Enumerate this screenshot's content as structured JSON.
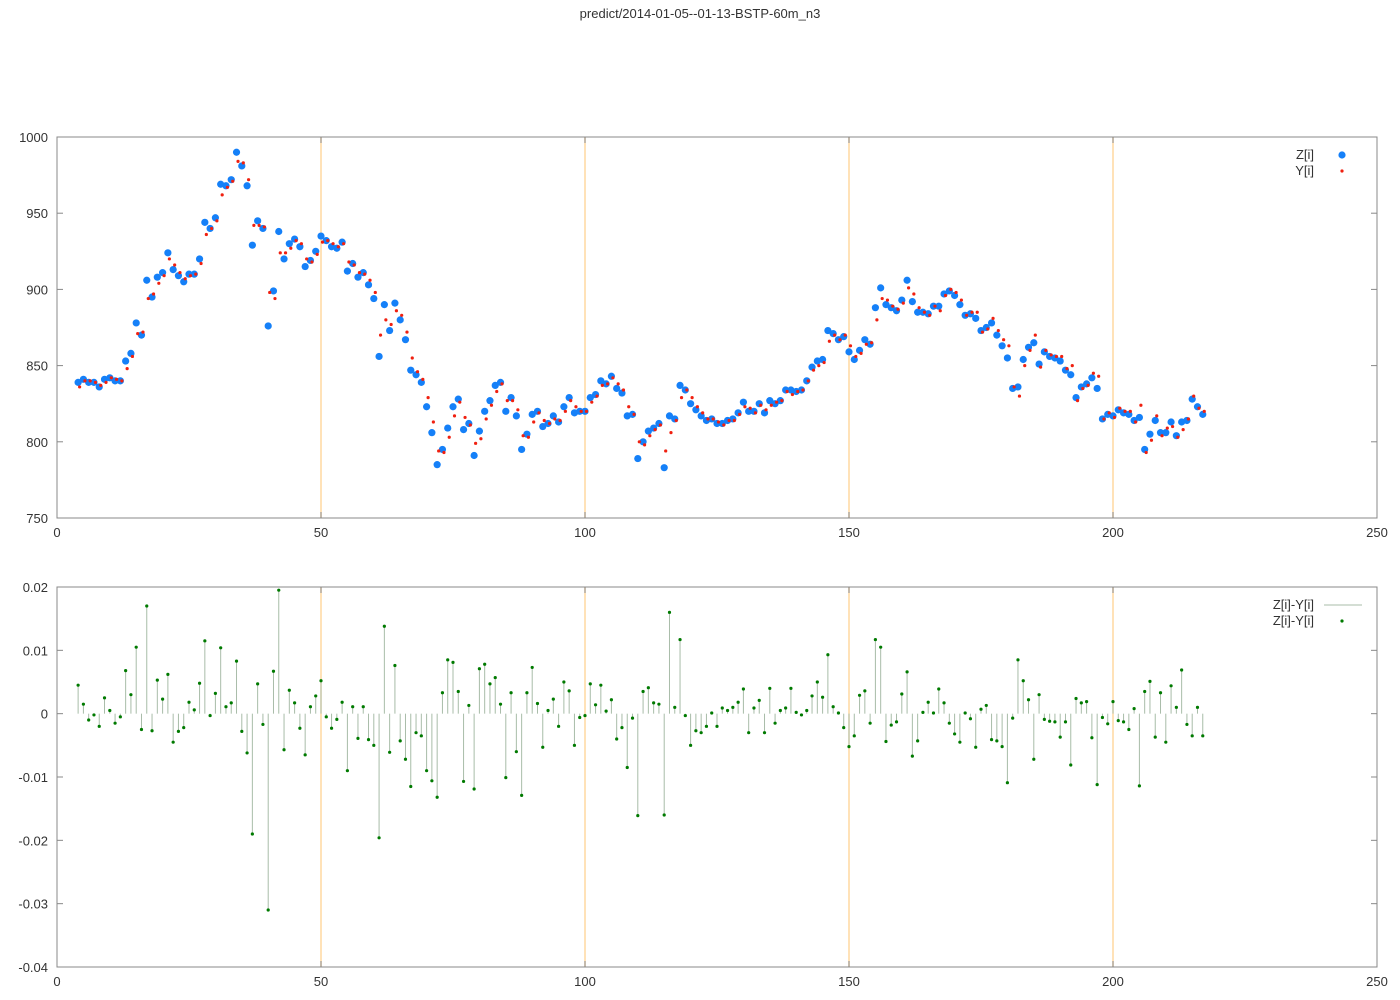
{
  "title": "predict/2014-01-05--01-13-BSTP-60m_n3",
  "colors": {
    "z": "#1580f8",
    "y": "#f02010",
    "diff_line": "#a8bca8",
    "diff_point": "#007a00",
    "grid": "#ffd8a0",
    "axis": "#888888"
  },
  "chart_data": [
    {
      "type": "scatter",
      "title": "",
      "xlabel": "",
      "ylabel": "",
      "xlim": [
        0,
        250
      ],
      "ylim": [
        750,
        1000
      ],
      "xticks": [
        "0",
        "50",
        "100",
        "150",
        "200",
        "250"
      ],
      "yticks": [
        "750",
        "800",
        "850",
        "900",
        "950",
        "1000"
      ],
      "grid": "vertical lines at x ticks 50-200",
      "legend": "top-right",
      "x_range": [
        4,
        217
      ],
      "series": [
        {
          "name": "Z[i]",
          "marker": "large dot",
          "values": [
            839,
            841,
            839,
            839,
            836,
            841,
            842,
            840,
            840,
            853,
            858,
            878,
            870,
            906,
            895,
            908,
            911,
            924,
            913,
            909,
            905,
            910,
            910,
            920,
            944,
            940,
            947,
            969,
            968,
            972,
            990,
            981,
            968,
            929,
            945,
            940,
            876,
            899,
            938,
            920,
            930,
            933,
            928,
            915,
            919,
            925,
            935,
            932,
            928,
            927,
            931,
            912,
            917,
            908,
            911,
            903,
            894,
            856,
            890,
            873,
            891,
            880,
            867,
            847,
            844,
            839,
            823,
            806,
            785,
            795,
            809,
            823,
            828,
            808,
            812,
            791,
            807,
            820,
            827,
            837,
            839,
            820,
            829,
            817,
            795,
            805,
            818,
            820,
            810,
            812,
            817,
            813,
            823,
            829,
            819,
            820,
            820,
            829,
            831,
            840,
            838,
            843,
            835,
            832,
            817,
            818,
            789,
            800,
            807,
            809,
            812,
            783,
            817,
            815,
            837,
            834,
            825,
            821,
            817,
            814,
            815,
            812,
            812,
            814,
            815,
            819,
            826,
            820,
            820,
            825,
            819,
            827,
            825,
            827,
            834,
            834,
            833,
            834,
            840,
            849,
            853,
            854,
            873,
            871,
            867,
            869,
            859,
            854,
            860,
            867,
            864,
            888,
            901,
            890,
            888,
            886,
            893,
            906,
            892,
            885,
            885,
            884,
            889,
            889,
            897,
            899,
            896,
            890,
            883,
            884,
            881,
            873,
            875,
            878,
            870,
            863,
            855,
            835,
            836,
            854,
            862,
            865,
            851,
            859,
            856,
            855,
            853,
            847,
            844,
            829,
            836,
            838,
            842,
            835,
            815,
            818,
            817,
            821,
            819,
            818,
            814,
            816,
            795,
            805,
            814,
            806,
            806,
            813,
            804,
            813,
            814,
            828,
            823,
            818
          ]
        },
        {
          "name": "Y[i]",
          "marker": "small dot",
          "values": [
            836,
            840,
            840,
            839,
            837,
            839,
            842,
            841,
            840,
            848,
            856,
            871,
            872,
            894,
            897,
            904,
            909,
            920,
            916,
            911,
            907,
            909,
            910,
            917,
            936,
            940,
            945,
            962,
            967,
            971,
            984,
            983,
            972,
            942,
            942,
            941,
            898,
            894,
            924,
            924,
            927,
            932,
            930,
            920,
            918,
            923,
            931,
            932,
            930,
            928,
            930,
            918,
            916,
            911,
            910,
            906,
            898,
            870,
            880,
            877,
            886,
            883,
            872,
            855,
            846,
            841,
            829,
            813,
            794,
            793,
            803,
            817,
            826,
            816,
            811,
            799,
            802,
            815,
            824,
            833,
            838,
            827,
            827,
            821,
            804,
            803,
            813,
            819,
            814,
            812,
            815,
            814,
            820,
            827,
            823,
            820,
            820,
            826,
            830,
            837,
            838,
            842,
            838,
            834,
            823,
            818,
            800,
            798,
            804,
            808,
            811,
            794,
            806,
            814,
            829,
            834,
            829,
            823,
            819,
            815,
            815,
            813,
            811,
            814,
            814,
            818,
            823,
            822,
            819,
            824,
            821,
            824,
            826,
            827,
            833,
            831,
            833,
            834,
            840,
            847,
            850,
            852,
            866,
            870,
            867,
            870,
            863,
            856,
            858,
            864,
            865,
            880,
            894,
            893,
            889,
            887,
            891,
            901,
            897,
            888,
            885,
            883,
            889,
            886,
            896,
            900,
            898,
            893,
            883,
            885,
            885,
            872,
            874,
            881,
            873,
            867,
            863,
            836,
            830,
            850,
            860,
            870,
            849,
            860,
            857,
            856,
            856,
            848,
            850,
            827,
            835,
            837,
            845,
            843,
            815,
            819,
            816,
            822,
            820,
            820,
            813,
            824,
            793,
            801,
            817,
            804,
            809,
            810,
            803,
            808,
            815,
            830,
            822,
            820
          ]
        }
      ]
    },
    {
      "type": "impulse+scatter",
      "title": "",
      "xlabel": "",
      "ylabel": "",
      "xlim": [
        0,
        250
      ],
      "ylim": [
        -0.04,
        0.02
      ],
      "xticks": [
        "0",
        "50",
        "100",
        "150",
        "200",
        "250"
      ],
      "yticks": [
        "-0.04",
        "-0.03",
        "-0.02",
        "-0.01",
        "0",
        "0.01",
        "0.02"
      ],
      "grid": "vertical lines at x ticks 50-200",
      "legend": "top-right",
      "x_range": [
        4,
        217
      ],
      "series": [
        {
          "name": "Z[i]-Y[i]",
          "marker": "impulse line",
          "values_ref": "same as points"
        },
        {
          "name": "Z[i]-Y[i]",
          "marker": "small dot",
          "values": [
            0.0045,
            0.0015,
            -0.001,
            -0.0002,
            -0.002,
            0.0025,
            0.0005,
            -0.0015,
            -0.0005,
            0.0068,
            0.003,
            0.0105,
            -0.0025,
            0.017,
            -0.0027,
            0.0053,
            0.0023,
            0.0062,
            -0.0045,
            -0.0028,
            -0.0022,
            0.0018,
            0.0006,
            0.0048,
            0.0115,
            -0.0003,
            0.0032,
            0.0104,
            0.0011,
            0.0017,
            0.0083,
            -0.0028,
            -0.0062,
            -0.019,
            0.0047,
            -0.0017,
            -0.031,
            0.0067,
            0.0195,
            -0.0057,
            0.0037,
            0.0017,
            -0.0023,
            -0.0065,
            0.0011,
            0.0028,
            0.0052,
            -0.0005,
            -0.0023,
            -0.0009,
            0.0018,
            -0.009,
            0.0011,
            -0.0039,
            0.0011,
            -0.0041,
            -0.005,
            -0.0196,
            0.0138,
            -0.0061,
            0.0076,
            -0.0043,
            -0.0072,
            -0.0115,
            -0.003,
            -0.0035,
            -0.009,
            -0.0106,
            -0.0132,
            0.0033,
            0.0085,
            0.0081,
            0.0035,
            -0.0107,
            0.0013,
            -0.0119,
            0.0071,
            0.0078,
            0.0047,
            0.0057,
            0.0015,
            -0.0101,
            0.0033,
            -0.006,
            -0.0129,
            0.0033,
            0.0073,
            0.0016,
            -0.0053,
            0.0005,
            0.0023,
            -0.002,
            0.005,
            0.0036,
            -0.005,
            -0.0006,
            -0.0003,
            0.0047,
            0.0014,
            0.0045,
            0.0004,
            0.0022,
            -0.004,
            -0.0022,
            -0.0085,
            -0.0007,
            -0.0161,
            0.0035,
            0.0041,
            0.0017,
            0.0015,
            -0.016,
            0.016,
            0.001,
            0.0117,
            -0.0003,
            -0.005,
            -0.0027,
            -0.003,
            -0.002,
            0.0001,
            -0.002,
            0.0009,
            0.0005,
            0.001,
            0.0018,
            0.0039,
            -0.003,
            0.0009,
            0.0021,
            -0.003,
            0.004,
            -0.0015,
            0.0005,
            0.0009,
            0.004,
            0.0002,
            -0.0002,
            0.0005,
            0.0028,
            0.005,
            0.0026,
            0.0093,
            0.0011,
            0.0001,
            -0.0022,
            -0.0052,
            -0.0035,
            0.0029,
            0.0036,
            -0.0015,
            0.0117,
            0.0105,
            -0.0044,
            -0.0018,
            -0.0013,
            0.0031,
            0.0066,
            -0.0067,
            -0.0043,
            0.0002,
            0.0018,
            0.0001,
            0.0039,
            0.0017,
            -0.0015,
            -0.0032,
            -0.0045,
            0.0001,
            -0.0008,
            -0.0053,
            0.0007,
            0.0013,
            -0.0041,
            -0.0043,
            -0.0052,
            -0.0109,
            -0.0007,
            0.0085,
            0.0052,
            0.0022,
            -0.0072,
            0.003,
            -0.0009,
            -0.0012,
            -0.0013,
            -0.0037,
            -0.0013,
            -0.0081,
            0.0024,
            0.0017,
            0.0019,
            -0.0038,
            -0.0112,
            -0.0006,
            -0.0016,
            0.0019,
            -0.0011,
            -0.0013,
            -0.0025,
            0.0008,
            -0.0114,
            0.0035,
            0.0051,
            -0.0037,
            0.0033,
            -0.0045,
            0.0044,
            0.001,
            0.0069,
            -0.0017,
            -0.0035,
            0.001,
            -0.0035
          ]
        }
      ]
    }
  ]
}
